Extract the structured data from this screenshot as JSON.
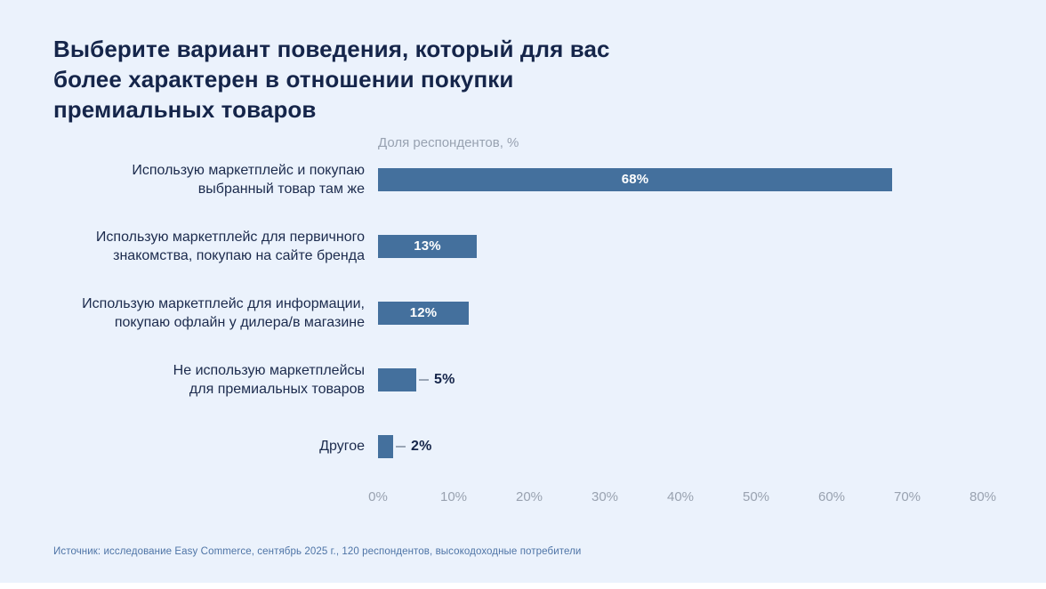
{
  "title": "Выберите вариант поведения, который для вас\nболее характерен в отношении покупки\nпремиальных товаров",
  "chart_data": {
    "type": "bar",
    "orientation": "horizontal",
    "axis_title": "Доля респондентов, %",
    "categories": [
      "Использую маркетплейс и покупаю\nвыбранный товар там же",
      "Использую маркетплейс для первичного\nзнакомства, покупаю на сайте бренда",
      "Использую маркетплейс для информации,\nпокупаю офлайн у дилера/в магазине",
      "Не использую маркетплейсы\nдля премиальных товаров",
      "Другое"
    ],
    "values": [
      68,
      13,
      12,
      5,
      2
    ],
    "value_labels": [
      "68%",
      "13%",
      "12%",
      "5%",
      "2%"
    ],
    "xlim": [
      0,
      80
    ],
    "x_ticks": [
      "0%",
      "10%",
      "20%",
      "30%",
      "40%",
      "50%",
      "60%",
      "70%",
      "80%"
    ],
    "grid": false,
    "legend": false,
    "bar_color": "#44709D",
    "value_label_inside_color": "#FFFFFF",
    "value_label_outside_color": "#15254A",
    "background_color": "#EBF2FC"
  },
  "footer": {
    "source": "Источник: исследование Easy Commerce, сентябрь 2025 г., 120 респондентов, высокодоходные потребители"
  }
}
